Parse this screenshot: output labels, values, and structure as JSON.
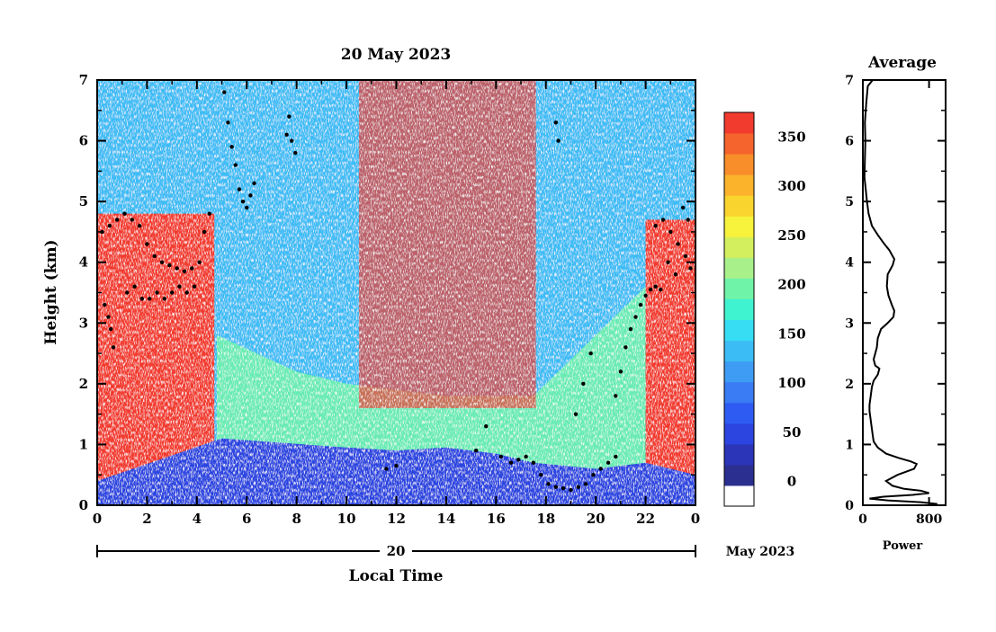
{
  "chart_data": [
    {
      "type": "heatmap",
      "title": "20 May 2023",
      "xlabel": "Local Time",
      "ylabel": "Height (km)",
      "x_ticks": [
        "0",
        "2",
        "4",
        "6",
        "8",
        "10",
        "12",
        "14",
        "16",
        "18",
        "20",
        "22",
        "0"
      ],
      "y_ticks": [
        "0",
        "1",
        "2",
        "3",
        "4",
        "5",
        "6",
        "7"
      ],
      "xlim": [
        0,
        24
      ],
      "ylim": [
        0,
        7
      ],
      "date_day": "20",
      "date_month": "May 2023",
      "colorbar": {
        "ticks": [
          "0",
          "50",
          "100",
          "150",
          "200",
          "250",
          "300",
          "350"
        ],
        "tick_values": [
          0,
          50,
          100,
          150,
          200,
          250,
          300,
          350
        ],
        "range": [
          -25,
          375
        ],
        "colors": [
          "#ffffff",
          "#2b2f8f",
          "#2a35b8",
          "#2c45e0",
          "#2e5cf2",
          "#3a7cf3",
          "#3e9cf5",
          "#3cbcf5",
          "#36ddf3",
          "#3ff3d0",
          "#6ef3a8",
          "#a7f08a",
          "#d4ef5e",
          "#f7f23c",
          "#f9d42e",
          "#fab32a",
          "#f88e2a",
          "#f5642d",
          "#f23b2f"
        ]
      },
      "layers": {
        "near_surface_blue": [
          [
            0,
            0.4
          ],
          [
            5,
            1.1
          ],
          [
            10,
            0.95
          ],
          [
            12,
            0.9
          ],
          [
            14,
            0.95
          ],
          [
            16,
            0.85
          ],
          [
            17.5,
            0.7
          ],
          [
            20,
            0.6
          ],
          [
            22,
            0.7
          ],
          [
            24,
            0.5
          ]
        ],
        "mid_range": [
          [
            4.8,
            2.8
          ],
          [
            8,
            2.2
          ],
          [
            10,
            2.0
          ],
          [
            14,
            1.8
          ],
          [
            17.5,
            1.8
          ],
          [
            20,
            2.8
          ],
          [
            22,
            3.6
          ]
        ],
        "red_convective_block": {
          "x_start": 10.5,
          "x_end": 17.6,
          "y_start": 1.6,
          "y_end": 7.0
        },
        "left_red_block": {
          "x_start": 0.0,
          "x_end": 4.7,
          "y_top": 4.8
        },
        "right_red_block": {
          "x_start": 22.0,
          "x_end": 24.0,
          "y_top": 4.7
        }
      },
      "detected_points": [
        [
          0.2,
          4.5
        ],
        [
          0.5,
          4.6
        ],
        [
          0.8,
          4.7
        ],
        [
          1.1,
          4.8
        ],
        [
          1.4,
          4.7
        ],
        [
          1.7,
          4.6
        ],
        [
          2.0,
          4.3
        ],
        [
          2.3,
          4.1
        ],
        [
          2.6,
          4.0
        ],
        [
          2.9,
          3.95
        ],
        [
          3.2,
          3.9
        ],
        [
          3.5,
          3.85
        ],
        [
          3.8,
          3.9
        ],
        [
          4.1,
          4.0
        ],
        [
          4.3,
          4.5
        ],
        [
          4.5,
          4.8
        ],
        [
          1.2,
          3.5
        ],
        [
          1.5,
          3.6
        ],
        [
          1.8,
          3.4
        ],
        [
          2.1,
          3.4
        ],
        [
          2.4,
          3.5
        ],
        [
          2.7,
          3.4
        ],
        [
          3.0,
          3.5
        ],
        [
          3.3,
          3.6
        ],
        [
          3.6,
          3.5
        ],
        [
          3.9,
          3.6
        ],
        [
          0.3,
          3.3
        ],
        [
          0.45,
          3.1
        ],
        [
          0.55,
          2.9
        ],
        [
          0.65,
          2.6
        ],
        [
          5.1,
          6.8
        ],
        [
          5.25,
          6.3
        ],
        [
          5.4,
          5.9
        ],
        [
          5.55,
          5.6
        ],
        [
          5.7,
          5.2
        ],
        [
          5.85,
          5.0
        ],
        [
          6.0,
          4.9
        ],
        [
          6.15,
          5.1
        ],
        [
          6.3,
          5.3
        ],
        [
          7.6,
          6.1
        ],
        [
          7.8,
          6.0
        ],
        [
          7.95,
          5.8
        ],
        [
          7.7,
          6.4
        ],
        [
          11.6,
          0.6
        ],
        [
          12.0,
          0.65
        ],
        [
          15.2,
          0.9
        ],
        [
          15.6,
          1.3
        ],
        [
          16.2,
          0.8
        ],
        [
          16.6,
          0.7
        ],
        [
          16.9,
          0.75
        ],
        [
          17.2,
          0.8
        ],
        [
          17.5,
          0.7
        ],
        [
          17.8,
          0.5
        ],
        [
          18.1,
          0.35
        ],
        [
          18.4,
          0.3
        ],
        [
          18.7,
          0.28
        ],
        [
          19.0,
          0.25
        ],
        [
          19.3,
          0.3
        ],
        [
          19.6,
          0.35
        ],
        [
          19.9,
          0.5
        ],
        [
          20.2,
          0.6
        ],
        [
          20.5,
          0.7
        ],
        [
          20.8,
          0.8
        ],
        [
          18.4,
          6.3
        ],
        [
          18.5,
          6.0
        ],
        [
          19.2,
          1.5
        ],
        [
          19.5,
          2.0
        ],
        [
          19.8,
          2.5
        ],
        [
          20.8,
          1.8
        ],
        [
          21.0,
          2.2
        ],
        [
          21.2,
          2.6
        ],
        [
          21.4,
          2.9
        ],
        [
          21.6,
          3.1
        ],
        [
          21.8,
          3.3
        ],
        [
          22.0,
          3.45
        ],
        [
          22.2,
          3.55
        ],
        [
          22.4,
          3.6
        ],
        [
          22.6,
          3.55
        ],
        [
          22.4,
          4.6
        ],
        [
          22.7,
          4.7
        ],
        [
          23.0,
          4.5
        ],
        [
          23.3,
          4.3
        ],
        [
          23.6,
          4.1
        ],
        [
          23.8,
          3.9
        ],
        [
          22.9,
          4.0
        ],
        [
          23.2,
          3.8
        ],
        [
          23.5,
          4.9
        ],
        [
          23.7,
          4.7
        ]
      ]
    },
    {
      "type": "line",
      "title": "Average",
      "xlabel": "Power",
      "ylabel": "",
      "x_ticks": [
        "0",
        "800"
      ],
      "x_tick_values": [
        0,
        800
      ],
      "y_ticks": [
        "0",
        "1",
        "2",
        "3",
        "4",
        "5",
        "6",
        "7"
      ],
      "xlim": [
        0,
        1000
      ],
      "ylim": [
        0,
        7
      ],
      "points": [
        [
          120,
          7.0
        ],
        [
          60,
          6.9
        ],
        [
          40,
          6.6
        ],
        [
          25,
          6.3
        ],
        [
          30,
          6.0
        ],
        [
          25,
          5.7
        ],
        [
          20,
          5.4
        ],
        [
          35,
          5.2
        ],
        [
          50,
          5.0
        ],
        [
          70,
          4.8
        ],
        [
          110,
          4.6
        ],
        [
          180,
          4.45
        ],
        [
          260,
          4.3
        ],
        [
          320,
          4.2
        ],
        [
          380,
          4.05
        ],
        [
          360,
          3.95
        ],
        [
          300,
          3.8
        ],
        [
          290,
          3.6
        ],
        [
          310,
          3.45
        ],
        [
          350,
          3.3
        ],
        [
          380,
          3.2
        ],
        [
          370,
          3.1
        ],
        [
          300,
          3.0
        ],
        [
          220,
          2.9
        ],
        [
          180,
          2.75
        ],
        [
          170,
          2.6
        ],
        [
          150,
          2.5
        ],
        [
          130,
          2.4
        ],
        [
          150,
          2.3
        ],
        [
          200,
          2.25
        ],
        [
          180,
          2.15
        ],
        [
          130,
          2.05
        ],
        [
          110,
          1.95
        ],
        [
          100,
          1.85
        ],
        [
          90,
          1.75
        ],
        [
          80,
          1.65
        ],
        [
          80,
          1.55
        ],
        [
          90,
          1.45
        ],
        [
          100,
          1.35
        ],
        [
          110,
          1.25
        ],
        [
          120,
          1.15
        ],
        [
          130,
          1.05
        ],
        [
          180,
          0.95
        ],
        [
          280,
          0.85
        ],
        [
          430,
          0.78
        ],
        [
          580,
          0.72
        ],
        [
          650,
          0.68
        ],
        [
          620,
          0.6
        ],
        [
          420,
          0.5
        ],
        [
          280,
          0.4
        ],
        [
          360,
          0.32
        ],
        [
          500,
          0.27
        ],
        [
          700,
          0.24
        ],
        [
          800,
          0.2
        ],
        [
          600,
          0.17
        ],
        [
          250,
          0.14
        ],
        [
          80,
          0.11
        ],
        [
          300,
          0.08
        ],
        [
          700,
          0.05
        ],
        [
          900,
          0.02
        ]
      ]
    }
  ]
}
